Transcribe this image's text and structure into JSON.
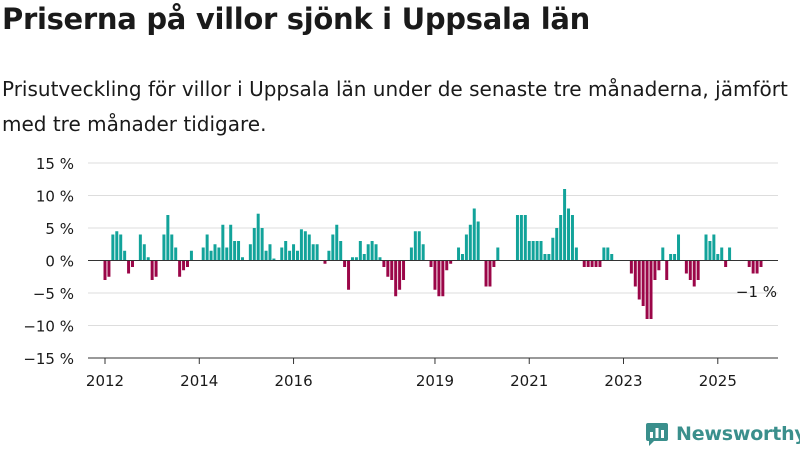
{
  "title": "Priserna på villor sjönk i Uppsala län",
  "subtitle": "Prisutveckling för villor i Uppsala län under de senaste tre månaderna, jämfört med tre månader tidigare.",
  "logo": {
    "text": "Newsworthy",
    "icon": "bar-chart-logo-icon"
  },
  "colors": {
    "positive": "#12a39a",
    "negative": "#9b0648",
    "grid": "#dddddd",
    "axis": "#333333",
    "brand": "#3a8f8c"
  },
  "chart_data": {
    "type": "bar",
    "ylim": [
      -15,
      15
    ],
    "y_ticks": [
      15,
      10,
      5,
      0,
      -5,
      -10,
      -15
    ],
    "y_tick_labels": [
      "15 %",
      "10 %",
      "5 %",
      "0 %",
      "−5 %",
      "−10 %",
      "−15 %"
    ],
    "x_ticks": [
      "2012",
      "2014",
      "2016",
      "2019",
      "2021",
      "2023",
      "2025"
    ],
    "x_range": [
      "2012-01",
      "2025-12"
    ],
    "start": "2012-01",
    "months": 167,
    "values": [
      -3,
      -2.5,
      4,
      4.5,
      4,
      1.5,
      -2,
      -1,
      0,
      4,
      2.5,
      0.5,
      -3,
      -2.5,
      0,
      4,
      7,
      4,
      2,
      -2.5,
      -1.5,
      -1,
      1.5,
      0,
      0,
      2,
      4,
      1.5,
      2.5,
      2,
      5.5,
      2,
      5.5,
      3,
      3,
      0.5,
      0,
      2.5,
      5,
      7.2,
      5,
      1.5,
      2.5,
      0.3,
      0,
      2,
      3,
      1.5,
      2.5,
      1.5,
      4.8,
      4.5,
      4,
      2.5,
      2.5,
      0,
      -0.5,
      1.5,
      4,
      5.5,
      3,
      -1,
      -4.5,
      0.5,
      0.5,
      3,
      1,
      2.5,
      3,
      2.5,
      0.5,
      -1,
      -2.5,
      -3,
      -5.5,
      -4.5,
      -3,
      0,
      2,
      4.5,
      4.5,
      2.5,
      0,
      -1,
      -4.5,
      -5.5,
      -5.5,
      -1.5,
      -0.5,
      0,
      2,
      1,
      4,
      5.5,
      8,
      6,
      0,
      -4,
      -4,
      -1,
      2,
      0,
      0,
      0,
      0,
      7,
      7,
      7,
      3,
      3,
      3,
      3,
      1,
      1,
      3.5,
      5,
      7,
      11,
      8,
      7,
      2,
      0,
      -1,
      -1,
      -1,
      -1,
      -1,
      2,
      2,
      1,
      0,
      0,
      0,
      0,
      -2,
      -4,
      -6,
      -7,
      -9,
      -9,
      -3,
      -1.5,
      2,
      -3,
      1,
      1,
      4,
      0,
      -2,
      -3,
      -4,
      -3,
      0,
      4,
      3,
      4,
      1,
      2,
      -1,
      2,
      0,
      0,
      0,
      0,
      -1,
      -2,
      -2,
      -1
    ],
    "annotations": [
      {
        "text": "−1 %",
        "x": "2025-11",
        "y": -1
      }
    ],
    "grid": true,
    "legend": "none"
  }
}
